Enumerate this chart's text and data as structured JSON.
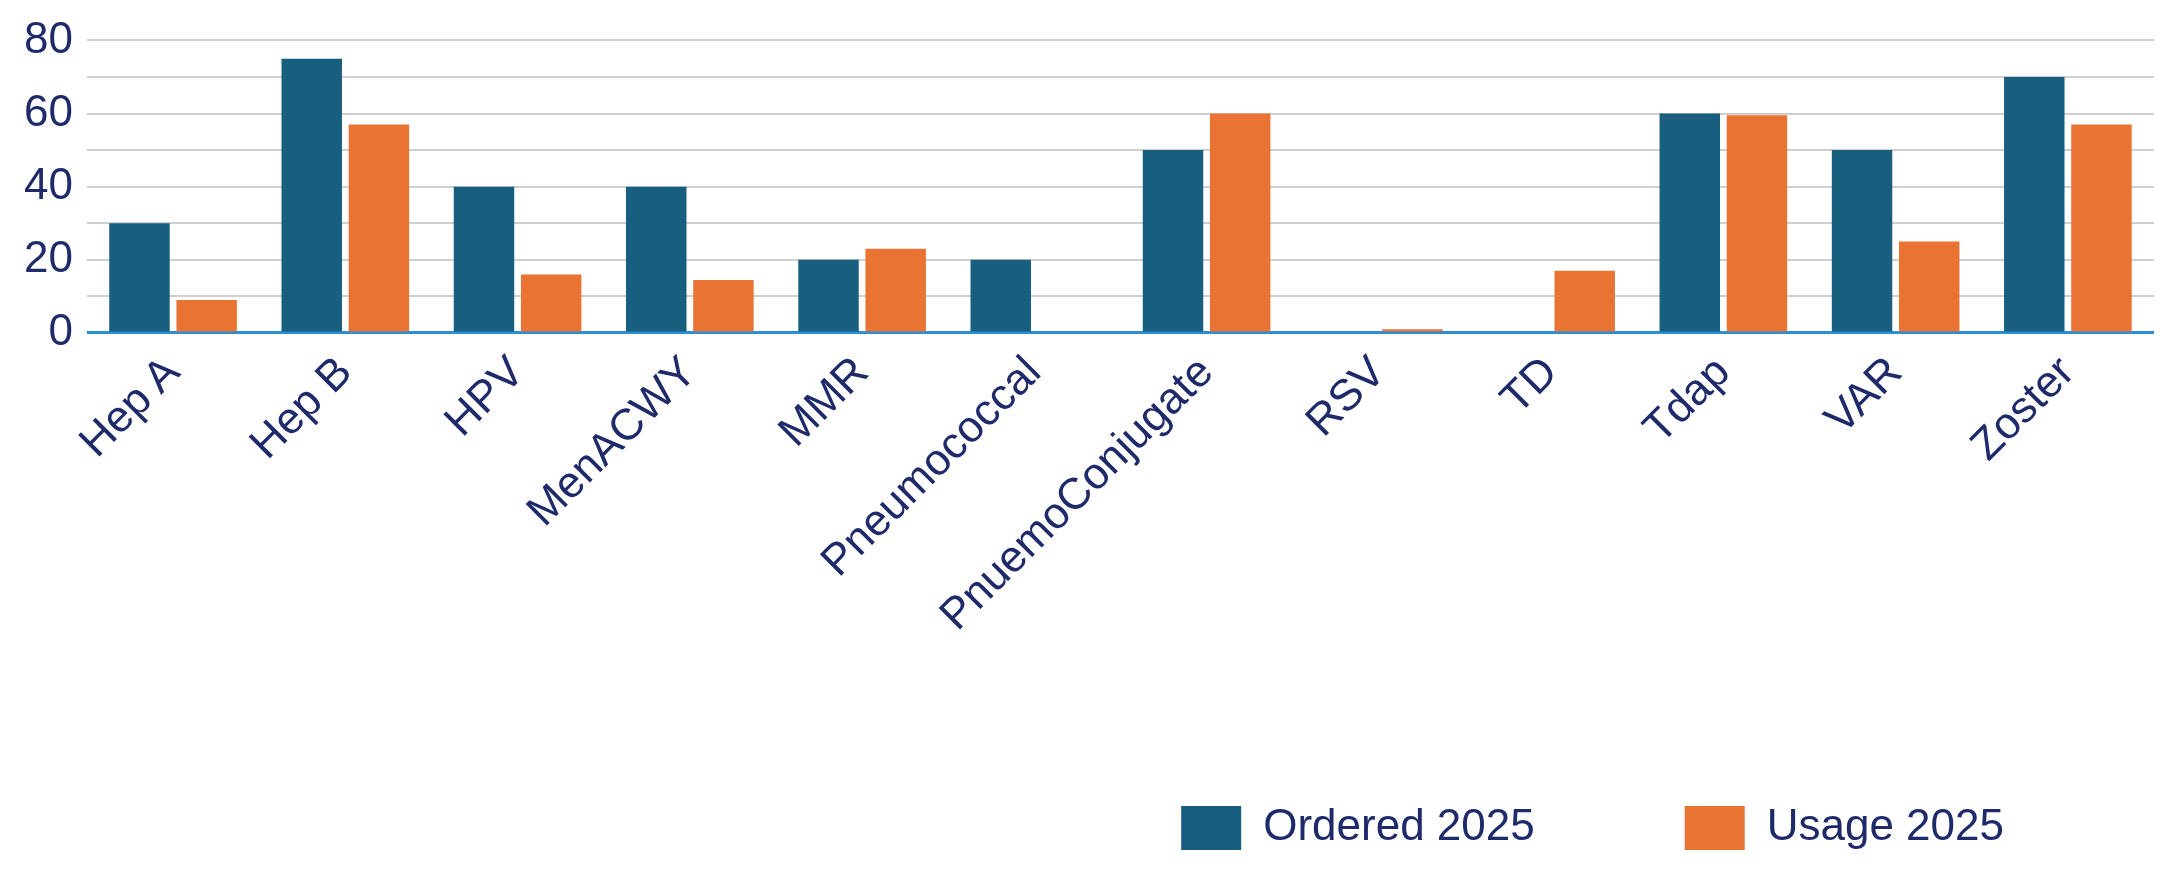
{
  "chart_data": {
    "type": "bar",
    "categories": [
      "Hep A",
      "Hep B",
      "HPV",
      "MenACWY",
      "MMR",
      "Pneumococcal",
      "PnuemoConjugate",
      "RSV",
      "TD",
      "Tdap",
      "VAR",
      "Zoster"
    ],
    "series": [
      {
        "name": "Ordered 2025",
        "color": "#175e7f",
        "values": [
          30,
          75,
          40,
          40,
          20,
          20,
          50,
          null,
          null,
          60,
          50,
          70
        ]
      },
      {
        "name": "Usage 2025",
        "color": "#e87332",
        "values": [
          9,
          57,
          16,
          14.5,
          23,
          null,
          60,
          1,
          17,
          59.5,
          25,
          57
        ]
      }
    ],
    "ylim": [
      0,
      80
    ],
    "yticks": [
      0,
      {
        "value": 10,
        "label": null
      },
      20,
      {
        "value": 30,
        "label": null
      },
      40,
      {
        "value": 50,
        "label": null
      },
      60,
      {
        "value": 70,
        "label": null
      },
      80
    ],
    "grid": "y",
    "legend": "bottom right"
  }
}
